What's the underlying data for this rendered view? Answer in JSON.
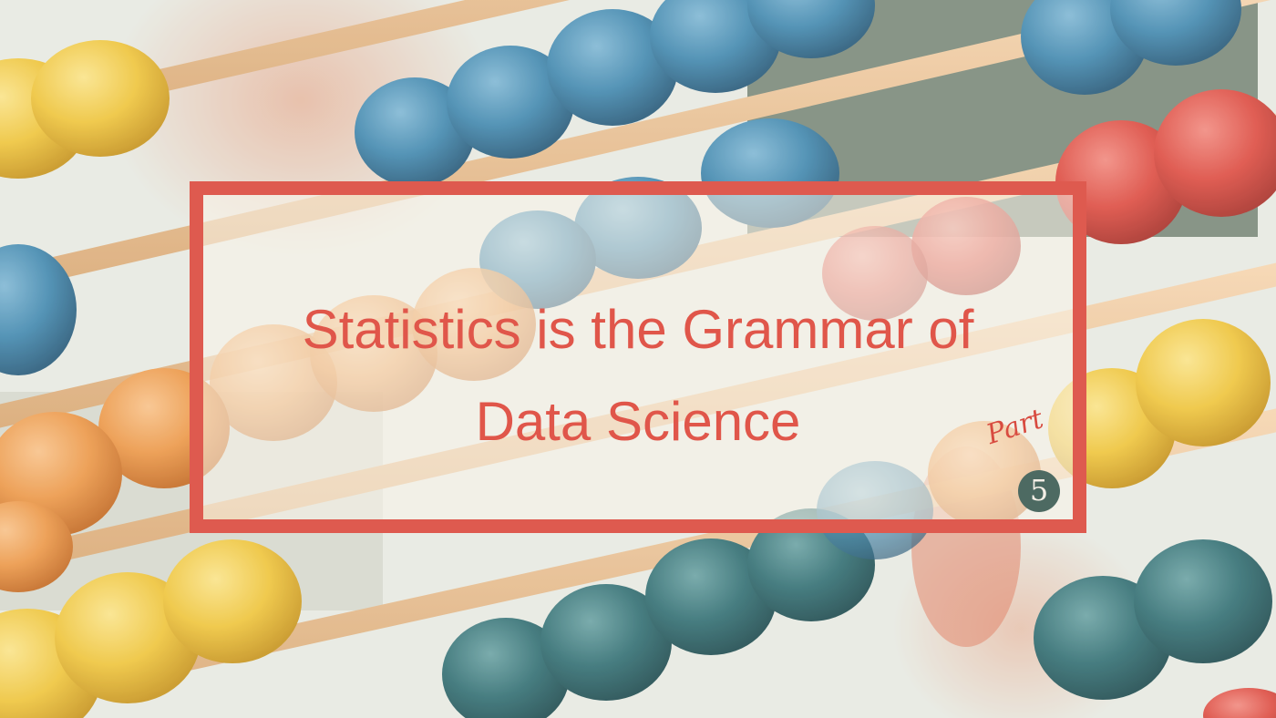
{
  "image": {
    "subject": "abacus-beads-photo",
    "palette": {
      "frame": "#de5a4f",
      "title": "#e0564a",
      "badge_circle": "#4d6a62",
      "bead_blue": "#3f88b0",
      "bead_red": "#dd4a40",
      "bead_yellow": "#efc53a",
      "bead_orange": "#ec9746",
      "bead_teal": "#2f6e73"
    }
  },
  "title": {
    "line1": "Statistics is the Grammar of",
    "line2": "Data Science"
  },
  "badge": {
    "label": "Part",
    "number": "5"
  }
}
